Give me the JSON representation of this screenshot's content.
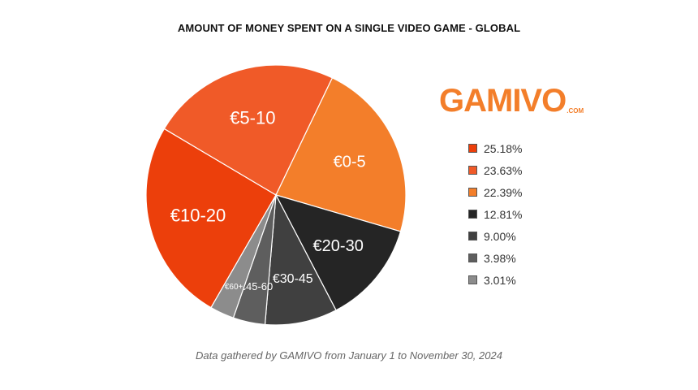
{
  "chart_data": {
    "type": "pie",
    "title": "AMOUNT OF MONEY SPENT ON A SINGLE VIDEO GAME - GLOBAL",
    "slices": [
      {
        "label": "€10-20",
        "value": 25.18,
        "legend": "25.18%",
        "color": "#ec3f0b"
      },
      {
        "label": "€5-10",
        "value": 23.63,
        "legend": "23.63%",
        "color": "#f05a28"
      },
      {
        "label": "€0-5",
        "value": 22.39,
        "legend": "22.39%",
        "color": "#f37e2a"
      },
      {
        "label": "€20-30",
        "value": 12.81,
        "legend": "12.81%",
        "color": "#252525"
      },
      {
        "label": "€30-45",
        "value": 9.0,
        "legend": "9.00%",
        "color": "#404040"
      },
      {
        "label": "€45-60",
        "value": 3.98,
        "legend": "3.98%",
        "color": "#5e5e5e"
      },
      {
        "label": "€60+",
        "value": 3.01,
        "legend": "3.01%",
        "color": "#8c8c8c"
      }
    ],
    "legend_position": "right"
  },
  "logo": {
    "main": "GAMIVO",
    "domain": ".COM",
    "color": "#f37e2a"
  },
  "footer": "Data gathered by GAMIVO from January 1 to November 30, 2024"
}
